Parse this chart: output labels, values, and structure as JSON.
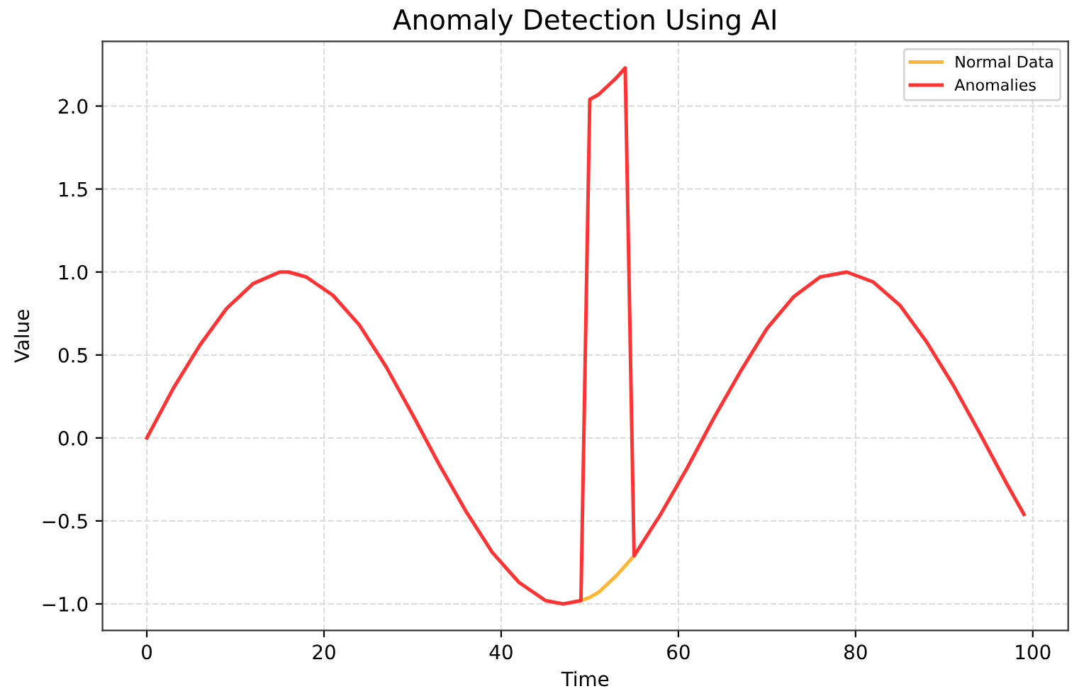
{
  "chart_data": {
    "type": "line",
    "title": "Anomaly Detection Using AI",
    "xlabel": "Time",
    "ylabel": "Value",
    "series": [
      {
        "name": "Normal Data",
        "color": "#ffb733",
        "x": [
          49,
          50,
          51,
          52,
          53,
          54,
          55
        ],
        "values": [
          -0.98,
          -0.96,
          -0.93,
          -0.88,
          -0.83,
          -0.77,
          -0.71
        ]
      },
      {
        "name": "Anomalies",
        "color": "#ff3333",
        "x": [
          0,
          3,
          6,
          9,
          12,
          15,
          16,
          18,
          21,
          24,
          27,
          30,
          33,
          36,
          39,
          42,
          45,
          47,
          49,
          50,
          51,
          52,
          53,
          54,
          55,
          58,
          61,
          64,
          67,
          70,
          73,
          76,
          79,
          82,
          85,
          88,
          91,
          94,
          97,
          99
        ],
        "values": [
          0,
          0.3,
          0.56,
          0.78,
          0.93,
          1.0,
          1.0,
          0.97,
          0.86,
          0.68,
          0.43,
          0.14,
          -0.16,
          -0.44,
          -0.69,
          -0.87,
          -0.98,
          -1.0,
          -0.98,
          2.04,
          2.07,
          2.12,
          2.17,
          2.23,
          -0.71,
          -0.46,
          -0.18,
          0.12,
          0.4,
          0.66,
          0.85,
          0.97,
          1.0,
          0.94,
          0.8,
          0.58,
          0.32,
          0.03,
          -0.27,
          -0.46
        ]
      }
    ],
    "xlim": [
      -5,
      104
    ],
    "ylim": [
      -1.16,
      2.39
    ],
    "xticks": [
      0,
      20,
      40,
      60,
      80,
      100
    ],
    "yticks": [
      {
        "value": -1.0,
        "label": "−1.0"
      },
      {
        "value": -0.5,
        "label": "−0.5"
      },
      {
        "value": 0.0,
        "label": "0.0"
      },
      {
        "value": 0.5,
        "label": "0.5"
      },
      {
        "value": 1.0,
        "label": "1.0"
      },
      {
        "value": 1.5,
        "label": "1.5"
      },
      {
        "value": 2.0,
        "label": "2.0"
      }
    ],
    "grid": true,
    "legend": "top right",
    "line_style": "solid"
  }
}
